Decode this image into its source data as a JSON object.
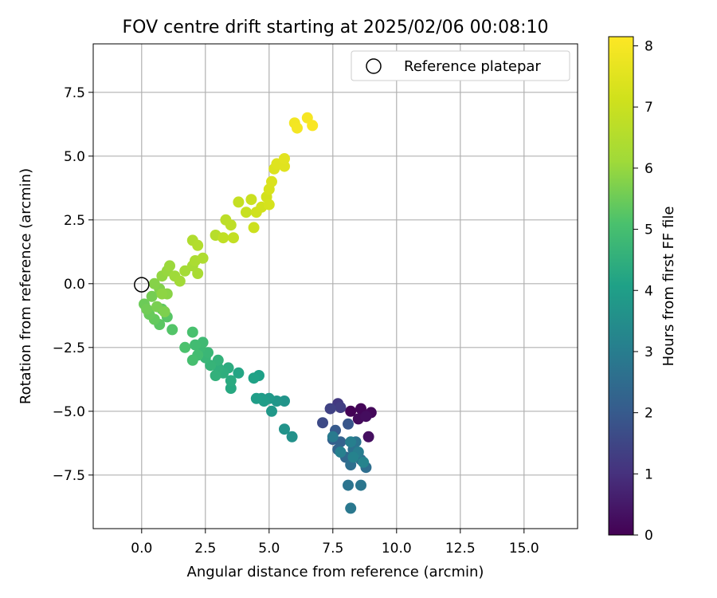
{
  "chart_data": {
    "type": "scatter",
    "title": "FOV centre drift starting at 2025/02/06 00:08:10",
    "xlabel": "Angular distance from reference (arcmin)",
    "ylabel": "Rotation from reference (arcmin)",
    "xlim": [
      -1.9,
      17.1
    ],
    "ylim": [
      -9.6,
      9.4
    ],
    "xticks": [
      "0.0",
      "2.5",
      "5.0",
      "7.5",
      "10.0",
      "12.5",
      "15.0"
    ],
    "yticks": [
      "7.5",
      "5.0",
      "2.5",
      "0.0",
      "−2.5",
      "−5.0",
      "−7.5"
    ],
    "grid": true,
    "legend": {
      "position": "top-right",
      "entries": [
        "Reference platepar"
      ]
    },
    "reference_point": {
      "x": 0.0,
      "y": 0.0
    },
    "colorbar": {
      "label": "Hours from first FF file",
      "range": [
        0,
        8.15
      ],
      "ticks": [
        "0",
        "1",
        "2",
        "3",
        "4",
        "5",
        "6",
        "7",
        "8"
      ],
      "colormap": "viridis"
    },
    "points": [
      {
        "x": 8.2,
        "y": -5.0,
        "c": 0.05
      },
      {
        "x": 8.6,
        "y": -4.9,
        "c": 0.1
      },
      {
        "x": 9.0,
        "y": -5.05,
        "c": 0.15
      },
      {
        "x": 8.5,
        "y": -5.3,
        "c": 0.2
      },
      {
        "x": 8.8,
        "y": -5.2,
        "c": 0.25
      },
      {
        "x": 8.9,
        "y": -6.0,
        "c": 0.3
      },
      {
        "x": 7.7,
        "y": -4.7,
        "c": 1.2
      },
      {
        "x": 7.8,
        "y": -4.85,
        "c": 1.3
      },
      {
        "x": 7.4,
        "y": -4.9,
        "c": 1.4
      },
      {
        "x": 7.1,
        "y": -5.45,
        "c": 1.6
      },
      {
        "x": 8.1,
        "y": -5.5,
        "c": 1.9
      },
      {
        "x": 7.6,
        "y": -5.75,
        "c": 2.0
      },
      {
        "x": 7.5,
        "y": -6.1,
        "c": 2.1
      },
      {
        "x": 7.8,
        "y": -6.2,
        "c": 2.2
      },
      {
        "x": 7.7,
        "y": -6.5,
        "c": 2.3
      },
      {
        "x": 8.0,
        "y": -6.8,
        "c": 2.4
      },
      {
        "x": 8.6,
        "y": -6.9,
        "c": 2.5
      },
      {
        "x": 8.8,
        "y": -7.2,
        "c": 2.55
      },
      {
        "x": 8.2,
        "y": -7.1,
        "c": 2.6
      },
      {
        "x": 8.3,
        "y": -6.5,
        "c": 2.65
      },
      {
        "x": 8.4,
        "y": -6.2,
        "c": 2.7
      },
      {
        "x": 8.1,
        "y": -7.9,
        "c": 2.75
      },
      {
        "x": 8.6,
        "y": -7.9,
        "c": 2.8
      },
      {
        "x": 8.2,
        "y": -8.8,
        "c": 2.85
      },
      {
        "x": 7.5,
        "y": -6.0,
        "c": 2.9
      },
      {
        "x": 8.5,
        "y": -6.6,
        "c": 3.0
      },
      {
        "x": 8.2,
        "y": -6.2,
        "c": 3.05
      },
      {
        "x": 7.8,
        "y": -6.6,
        "c": 3.1
      },
      {
        "x": 8.3,
        "y": -6.8,
        "c": 3.15
      },
      {
        "x": 8.7,
        "y": -7.0,
        "c": 3.2
      },
      {
        "x": 5.9,
        "y": -6.0,
        "c": 3.6
      },
      {
        "x": 5.6,
        "y": -5.7,
        "c": 3.65
      },
      {
        "x": 5.6,
        "y": -4.6,
        "c": 3.7
      },
      {
        "x": 5.3,
        "y": -4.6,
        "c": 3.75
      },
      {
        "x": 5.1,
        "y": -5.0,
        "c": 3.8
      },
      {
        "x": 5.0,
        "y": -4.5,
        "c": 3.85
      },
      {
        "x": 4.7,
        "y": -4.5,
        "c": 3.9
      },
      {
        "x": 4.8,
        "y": -4.6,
        "c": 3.95
      },
      {
        "x": 4.5,
        "y": -4.5,
        "c": 4.0
      },
      {
        "x": 4.6,
        "y": -3.6,
        "c": 4.05
      },
      {
        "x": 4.4,
        "y": -3.7,
        "c": 4.1
      },
      {
        "x": 3.8,
        "y": -3.5,
        "c": 4.2
      },
      {
        "x": 3.5,
        "y": -4.1,
        "c": 4.3
      },
      {
        "x": 3.5,
        "y": -3.8,
        "c": 4.35
      },
      {
        "x": 3.4,
        "y": -3.3,
        "c": 4.4
      },
      {
        "x": 3.2,
        "y": -3.5,
        "c": 4.45
      },
      {
        "x": 3.0,
        "y": -3.3,
        "c": 4.5
      },
      {
        "x": 2.9,
        "y": -3.6,
        "c": 4.55
      },
      {
        "x": 3.0,
        "y": -3.0,
        "c": 4.6
      },
      {
        "x": 2.7,
        "y": -3.2,
        "c": 4.65
      },
      {
        "x": 2.5,
        "y": -2.9,
        "c": 4.7
      },
      {
        "x": 2.6,
        "y": -2.7,
        "c": 4.75
      },
      {
        "x": 2.3,
        "y": -2.5,
        "c": 4.8
      },
      {
        "x": 2.4,
        "y": -2.3,
        "c": 4.85
      },
      {
        "x": 2.1,
        "y": -2.4,
        "c": 4.9
      },
      {
        "x": 2.2,
        "y": -2.8,
        "c": 4.95
      },
      {
        "x": 2.0,
        "y": -3.0,
        "c": 5.0
      },
      {
        "x": 2.0,
        "y": -1.9,
        "c": 5.05
      },
      {
        "x": 1.7,
        "y": -2.5,
        "c": 5.1
      },
      {
        "x": 1.2,
        "y": -1.8,
        "c": 5.2
      },
      {
        "x": 1.0,
        "y": -1.3,
        "c": 5.25
      },
      {
        "x": 0.7,
        "y": -1.6,
        "c": 5.3
      },
      {
        "x": 0.8,
        "y": -1.0,
        "c": 5.35
      },
      {
        "x": 0.5,
        "y": -1.4,
        "c": 5.4
      },
      {
        "x": 0.3,
        "y": -1.2,
        "c": 5.45
      },
      {
        "x": 0.1,
        "y": -0.8,
        "c": 5.5
      },
      {
        "x": 0.2,
        "y": -1.0,
        "c": 5.55
      },
      {
        "x": 0.4,
        "y": -0.5,
        "c": 5.6
      },
      {
        "x": 0.6,
        "y": -0.9,
        "c": 5.65
      },
      {
        "x": 0.9,
        "y": -1.1,
        "c": 5.7
      },
      {
        "x": 0.7,
        "y": -0.2,
        "c": 5.75
      },
      {
        "x": 0.5,
        "y": 0.0,
        "c": 5.8
      },
      {
        "x": 1.0,
        "y": -0.4,
        "c": 5.85
      },
      {
        "x": 0.8,
        "y": -0.4,
        "c": 5.9
      },
      {
        "x": 0.8,
        "y": 0.3,
        "c": 5.95
      },
      {
        "x": 1.0,
        "y": 0.5,
        "c": 6.0
      },
      {
        "x": 1.1,
        "y": 0.7,
        "c": 6.05
      },
      {
        "x": 1.3,
        "y": 0.3,
        "c": 6.1
      },
      {
        "x": 1.5,
        "y": 0.1,
        "c": 6.15
      },
      {
        "x": 1.7,
        "y": 0.5,
        "c": 6.2
      },
      {
        "x": 2.0,
        "y": 0.7,
        "c": 6.25
      },
      {
        "x": 2.2,
        "y": 0.4,
        "c": 6.3
      },
      {
        "x": 2.1,
        "y": 0.9,
        "c": 6.35
      },
      {
        "x": 2.4,
        "y": 1.0,
        "c": 6.4
      },
      {
        "x": 2.0,
        "y": 1.7,
        "c": 6.45
      },
      {
        "x": 2.2,
        "y": 1.5,
        "c": 6.5
      },
      {
        "x": 2.9,
        "y": 1.9,
        "c": 6.6
      },
      {
        "x": 3.3,
        "y": 2.5,
        "c": 6.7
      },
      {
        "x": 3.5,
        "y": 2.3,
        "c": 6.75
      },
      {
        "x": 3.2,
        "y": 1.8,
        "c": 6.8
      },
      {
        "x": 3.6,
        "y": 1.8,
        "c": 6.85
      },
      {
        "x": 3.8,
        "y": 3.2,
        "c": 6.9
      },
      {
        "x": 4.1,
        "y": 2.8,
        "c": 6.95
      },
      {
        "x": 4.3,
        "y": 3.3,
        "c": 7.0
      },
      {
        "x": 4.4,
        "y": 2.2,
        "c": 7.05
      },
      {
        "x": 4.5,
        "y": 2.8,
        "c": 7.1
      },
      {
        "x": 4.7,
        "y": 3.0,
        "c": 7.15
      },
      {
        "x": 4.9,
        "y": 3.4,
        "c": 7.2
      },
      {
        "x": 5.0,
        "y": 3.1,
        "c": 7.25
      },
      {
        "x": 5.0,
        "y": 3.7,
        "c": 7.3
      },
      {
        "x": 5.1,
        "y": 4.0,
        "c": 7.35
      },
      {
        "x": 5.2,
        "y": 4.5,
        "c": 7.4
      },
      {
        "x": 5.3,
        "y": 4.7,
        "c": 7.45
      },
      {
        "x": 5.6,
        "y": 4.6,
        "c": 7.5
      },
      {
        "x": 5.6,
        "y": 4.9,
        "c": 7.55
      },
      {
        "x": 6.0,
        "y": 6.3,
        "c": 7.9
      },
      {
        "x": 6.1,
        "y": 6.1,
        "c": 7.95
      },
      {
        "x": 6.5,
        "y": 6.5,
        "c": 8.0
      },
      {
        "x": 6.7,
        "y": 6.2,
        "c": 8.05
      }
    ]
  }
}
